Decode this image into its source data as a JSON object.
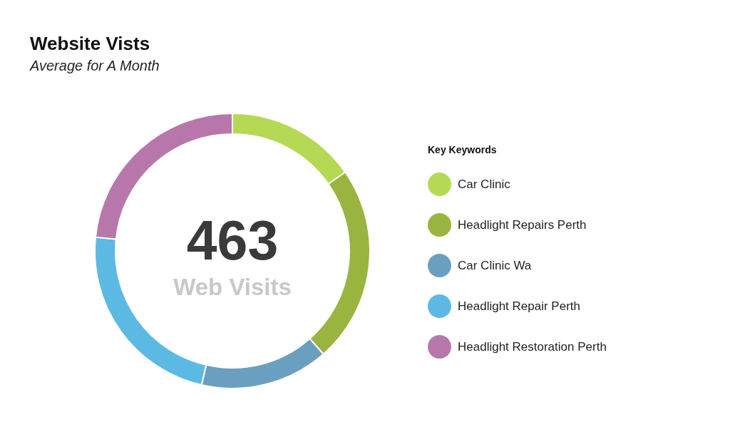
{
  "chart_data": {
    "type": "donut",
    "title": "Website Vists",
    "subtitle": "Average for A Month",
    "legend_title": "Key Keywords",
    "categories": [
      "Car Clinic",
      "Headlight Repairs Perth",
      "Car Clinic Wa",
      "Headlight Repair Perth",
      "Headlight Restoration Perth"
    ],
    "values": [
      15.3,
      23.2,
      15.1,
      23.0,
      23.4
    ],
    "colors": [
      "#b5d955",
      "#99b53f",
      "#6b9fc0",
      "#5cb9e4",
      "#b877aa"
    ],
    "annotations": [
      "463",
      "Web Visits"
    ],
    "legend": "right"
  }
}
